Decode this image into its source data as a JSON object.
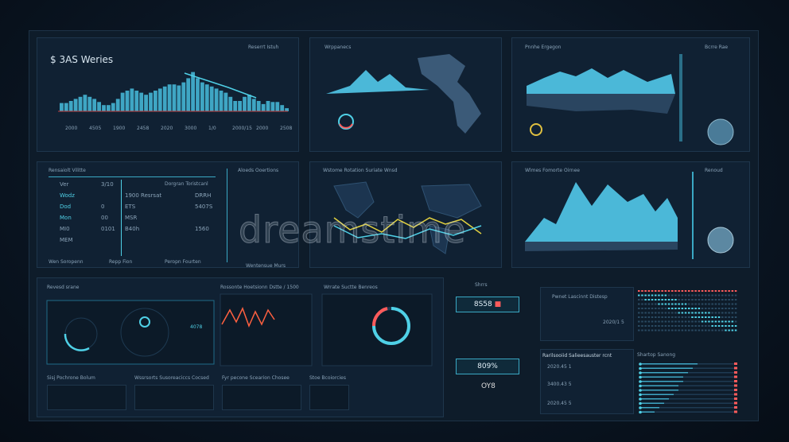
{
  "panels": {
    "series": {
      "title": "$ 3AS Weries",
      "header": "Reserrt Istuh",
      "x_labels": [
        "2000",
        "4505",
        "1900",
        "2458",
        "2020",
        "3000",
        "1/0",
        "2000/15",
        "2000",
        "2508"
      ]
    },
    "map_top": {
      "title": "Wrppanecs"
    },
    "mountain_top": {
      "title": "Pnnhe Ergegon",
      "side": "Bcrre Rae"
    },
    "table": {
      "title": "Rensaiolt Vilitte",
      "col_header": "Dorgran Toristcanl",
      "rows": [
        {
          "a": "Ver",
          "b": "3/10",
          "c": "",
          "d": ""
        },
        {
          "a": "Wodz",
          "b": "",
          "c": "1900 Resrsat",
          "d": "DRRH"
        },
        {
          "a": "Dod",
          "b": "0",
          "c": "ETS",
          "d": "5407S"
        },
        {
          "a": "Mon",
          "b": "00",
          "c": "MSR",
          "d": ""
        },
        {
          "a": "MI0",
          "b": "0101",
          "c": "B40h",
          "d": "1560"
        },
        {
          "a": "MEM",
          "b": "",
          "c": "",
          "d": ""
        }
      ],
      "footer": [
        "Wen Soropenn",
        "Repp Fion",
        "Peropn Fourten"
      ]
    },
    "side_list": {
      "title": "Aloeds Ooertions",
      "footer": "Wentensue Murs"
    },
    "world_map": {
      "title": "Wstome Rotation Suriate Wnsd"
    },
    "mountain_mid": {
      "title": "Wlmes Fomorte Oirnee",
      "side": "Renoud"
    },
    "gauge_left": {
      "title": "Revesd srane",
      "value": "4078"
    },
    "line_panel": {
      "title": "Rossonte Hoetsionn Dstte / 1500"
    },
    "gauge_mid": {
      "title": "Wrrate Suctte Benreos"
    },
    "kpi": {
      "title": "Shrrs",
      "value1": "8S58",
      "value2": "809%",
      "value3": "OY8"
    },
    "list_top": {
      "title": "Pwnet Lascinnt Distesp",
      "value": "2020/1 5"
    },
    "list_bottom": {
      "title": "Rarilsooiid Salieesauster rcnt",
      "items": [
        "2020.45 1",
        "3400.43 5",
        "2020.45 5"
      ]
    },
    "bars": {
      "title": "Shartop Sanong"
    },
    "bottom_tiles": [
      "Sisj Pochrone Bolum",
      "Wssrsorts Susoreaciccs Cocsed",
      "Fyr pecone Scearion Chosee",
      "Stoe Bcoiorcies"
    ]
  },
  "watermark": "dreamstime",
  "colors": {
    "accent": "#4fd0e6",
    "alert": "#ff5b5b",
    "panel": "#102133"
  }
}
